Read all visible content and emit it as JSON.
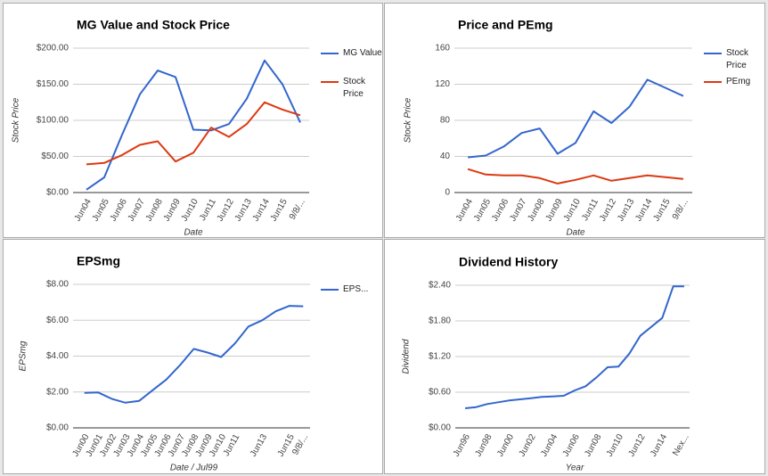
{
  "chart_data": [
    {
      "type": "line",
      "title": "MG Value and Stock Price",
      "x_label": "Date",
      "y_label": "Stock Price",
      "categories": [
        "Jun04",
        "Jun05",
        "Jun06",
        "Jun07",
        "Jun08",
        "Jun09",
        "Jun10",
        "Jun11",
        "Jun12",
        "Jun13",
        "Jun14",
        "Jun15",
        "9/8/..."
      ],
      "series": [
        {
          "name": "MG Value",
          "color": "#3366cc",
          "values": [
            4,
            21,
            80,
            136,
            169,
            160,
            87,
            86,
            95,
            130,
            183,
            150,
            97
          ]
        },
        {
          "name": "Stock Price",
          "color": "#dc3912",
          "values": [
            39,
            41,
            52,
            66,
            71,
            43,
            55,
            90,
            77,
            95,
            125,
            115,
            107
          ]
        }
      ],
      "ylim": [
        0,
        200
      ],
      "yticks": [
        {
          "value": 0,
          "label": "$0.00"
        },
        {
          "value": 50,
          "label": "$50.00"
        },
        {
          "value": 100,
          "label": "$100.00"
        },
        {
          "value": 150,
          "label": "$150.00"
        },
        {
          "value": 200,
          "label": "$200.00"
        }
      ],
      "grid": true,
      "legend": "right"
    },
    {
      "type": "line",
      "title": "Price and PEmg",
      "x_label": "Date",
      "y_label": "Stock Price",
      "categories": [
        "Jun04",
        "Jun05",
        "Jun06",
        "Jun07",
        "Jun08",
        "Jun09",
        "Jun10",
        "Jun11",
        "Jun12",
        "Jun13",
        "Jun14",
        "Jun15",
        "9/8/..."
      ],
      "series": [
        {
          "name": "Stock Price",
          "color": "#3366cc",
          "values": [
            39,
            41,
            51,
            66,
            71,
            43,
            55,
            90,
            77,
            95,
            125,
            116,
            107
          ]
        },
        {
          "name": "PEmg",
          "color": "#dc3912",
          "values": [
            26,
            20,
            19,
            19,
            16,
            10,
            14,
            19,
            13,
            16,
            19,
            17,
            15
          ]
        }
      ],
      "ylim": [
        0,
        160
      ],
      "yticks": [
        0,
        40,
        80,
        120,
        160
      ],
      "grid": true,
      "legend": "right"
    },
    {
      "type": "line",
      "title": "EPSmg",
      "x_label": "Date / Jul99",
      "y_label": "EPSmg",
      "categories": [
        "Jun00",
        "Jun01",
        "Jun02",
        "Jun03",
        "Jun04",
        "Jun05",
        "Jun06",
        "Jun07",
        "Jun08",
        "Jun09",
        "Jun10",
        "Jun11",
        null,
        "Jun13",
        null,
        "Jun15",
        "9/8/..."
      ],
      "series": [
        {
          "name": "EPS...",
          "color": "#3366cc",
          "values": [
            1.95,
            1.98,
            1.62,
            1.4,
            1.5,
            2.1,
            2.7,
            3.5,
            4.4,
            4.2,
            3.95,
            4.7,
            5.65,
            6.0,
            6.5,
            6.8,
            6.78
          ]
        }
      ],
      "ylim": [
        0,
        8
      ],
      "yticks": [
        {
          "value": 0,
          "label": "$0.00"
        },
        {
          "value": 2,
          "label": "$2.00"
        },
        {
          "value": 4,
          "label": "$4.00"
        },
        {
          "value": 6,
          "label": "$6.00"
        },
        {
          "value": 8,
          "label": "$8.00"
        }
      ],
      "grid": true,
      "legend": "right"
    },
    {
      "type": "line",
      "title": "Dividend History",
      "x_label": "Year",
      "y_label": "Dividend",
      "categories": [
        "Jun96",
        null,
        "Jun98",
        null,
        "Jun00",
        null,
        "Jun02",
        null,
        "Jun04",
        null,
        "Jun06",
        null,
        "Jun08",
        null,
        "Jun10",
        null,
        "Jun12",
        null,
        "Jun14",
        null,
        "Nex..."
      ],
      "series": [
        {
          "name": "Dividend",
          "color": "#3366cc",
          "values": [
            0.33,
            0.35,
            0.4,
            0.43,
            0.46,
            0.48,
            0.5,
            0.52,
            0.53,
            0.54,
            0.63,
            0.7,
            0.85,
            1.02,
            1.03,
            1.25,
            1.55,
            1.7,
            1.85,
            2.38,
            2.38
          ]
        }
      ],
      "ylim": [
        0,
        2.4
      ],
      "yticks": [
        {
          "value": 0,
          "label": "$0.00"
        },
        {
          "value": 0.6,
          "label": "$0.60"
        },
        {
          "value": 1.2,
          "label": "$1.20"
        },
        {
          "value": 1.8,
          "label": "$1.80"
        },
        {
          "value": 2.4,
          "label": "$2.40"
        }
      ],
      "grid": true,
      "legend": "none"
    }
  ]
}
